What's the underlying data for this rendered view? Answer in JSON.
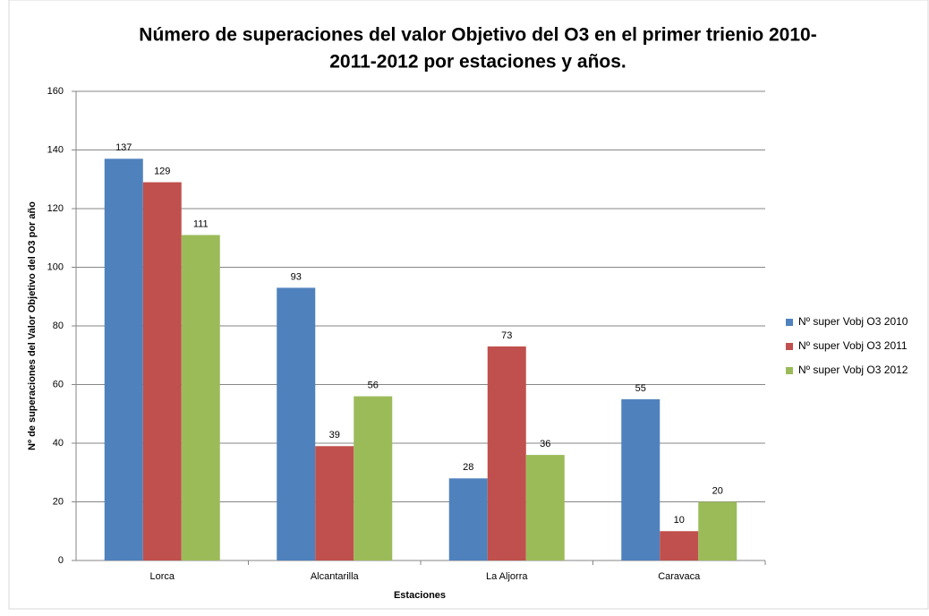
{
  "chart_data": {
    "type": "bar",
    "title": [
      "Número de superaciones del valor Objetivo del O3 en el primer trienio 2010-",
      "2011-2012 por estaciones y años."
    ],
    "x_label": "Estaciones",
    "y_label": "Nº de superaciones del Valor Objetivo del O3 por año",
    "categories": [
      "Lorca",
      "Alcantarilla",
      "La Aljorra",
      "Caravaca"
    ],
    "series": [
      {
        "name": "Nº super Vobj O3 2010",
        "color": "#4f81bd",
        "values": [
          137,
          93,
          28,
          55
        ]
      },
      {
        "name": "Nº super Vobj O3 2011",
        "color": "#c0504d",
        "values": [
          129,
          39,
          73,
          10
        ]
      },
      {
        "name": "Nº super Vobj O3 2012",
        "color": "#9bbb59",
        "values": [
          111,
          56,
          36,
          20
        ]
      }
    ],
    "ylim": [
      0,
      160
    ],
    "yticks": [
      0,
      20,
      40,
      60,
      80,
      100,
      120,
      140,
      160
    ],
    "grid": true,
    "legend": "right"
  }
}
